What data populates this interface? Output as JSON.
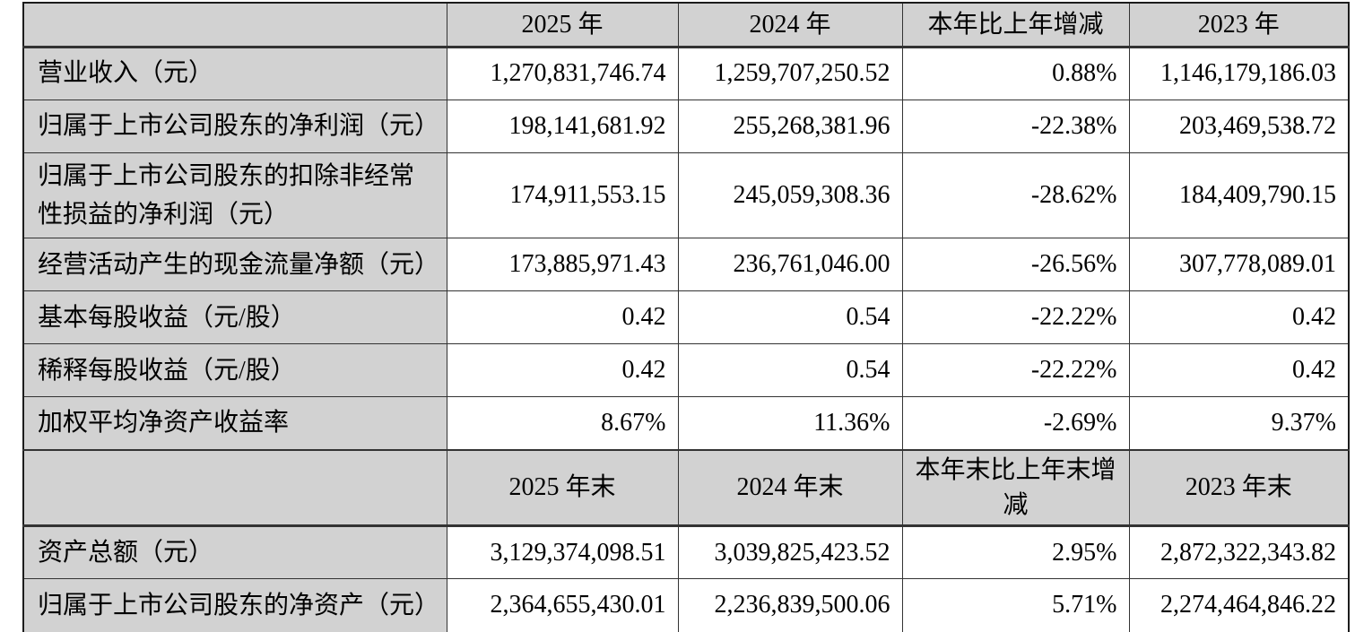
{
  "colors": {
    "header_bg": "#d2d2d2",
    "label_bg": "#d2d2d2",
    "border": "#333333",
    "data_bg": "#ffffff",
    "text": "#000000"
  },
  "table": {
    "section_annual": {
      "headers": {
        "blank": "",
        "col2": "2025 年",
        "col3": "2024 年",
        "col4": "本年比上年增减",
        "col5": "2023 年"
      },
      "rows": [
        {
          "label": "营业收入（元）",
          "values": [
            "1,270,831,746.74",
            "1,259,707,250.52",
            "0.88%",
            "1,146,179,186.03"
          ]
        },
        {
          "label": "归属于上市公司股东的净利润（元）",
          "values": [
            "198,141,681.92",
            "255,268,381.96",
            "-22.38%",
            "203,469,538.72"
          ]
        },
        {
          "label": "归属于上市公司股东的扣除非经常性损益的净利润（元）",
          "values": [
            "174,911,553.15",
            "245,059,308.36",
            "-28.62%",
            "184,409,790.15"
          ]
        },
        {
          "label": "经营活动产生的现金流量净额（元）",
          "values": [
            "173,885,971.43",
            "236,761,046.00",
            "-26.56%",
            "307,778,089.01"
          ]
        },
        {
          "label": "基本每股收益（元/股）",
          "values": [
            "0.42",
            "0.54",
            "-22.22%",
            "0.42"
          ]
        },
        {
          "label": "稀释每股收益（元/股）",
          "values": [
            "0.42",
            "0.54",
            "-22.22%",
            "0.42"
          ]
        },
        {
          "label": "加权平均净资产收益率",
          "values": [
            "8.67%",
            "11.36%",
            "-2.69%",
            "9.37%"
          ]
        }
      ]
    },
    "section_yearend": {
      "headers": {
        "blank": "",
        "col2": "2025 年末",
        "col3": "2024 年末",
        "col4": "本年末比上年末增减",
        "col5": "2023 年末"
      },
      "rows": [
        {
          "label": "资产总额（元）",
          "values": [
            "3,129,374,098.51",
            "3,039,825,423.52",
            "2.95%",
            "2,872,322,343.82"
          ]
        },
        {
          "label": "归属于上市公司股东的净资产（元）",
          "values": [
            "2,364,655,430.01",
            "2,236,839,500.06",
            "5.71%",
            "2,274,464,846.22"
          ]
        }
      ]
    }
  }
}
